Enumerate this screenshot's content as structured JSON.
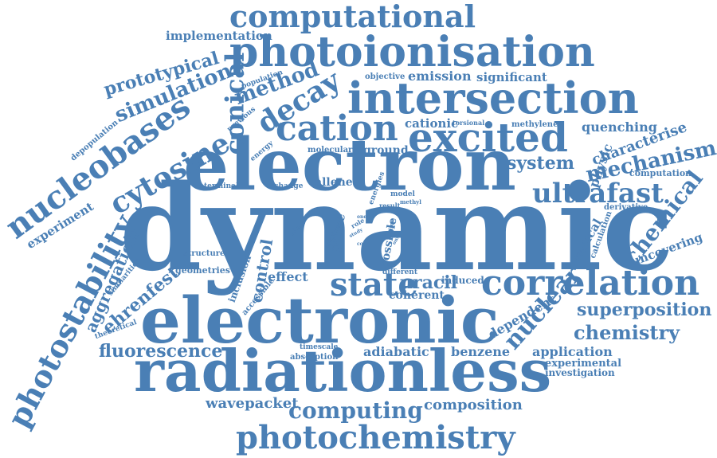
{
  "accent_color": "#4a7fb5",
  "words": [
    "dynamic",
    "electron",
    "electronic",
    "radiationless",
    "intersection",
    "photoionisation",
    "excited",
    "cation",
    "correlation",
    "computational",
    "state",
    "photochemistry",
    "nucleobases",
    "photostability",
    "cytosine",
    "conical",
    "decay",
    "ultrafast",
    "mechanism",
    "chemistry",
    "superposition",
    "computing",
    "chemical",
    "nuclear",
    "method",
    "simulation",
    "prototypical",
    "fluorescence",
    "aggregation",
    "ehrenfest",
    "system",
    "characterise",
    "emission",
    "significant",
    "quenching",
    "cationic",
    "application",
    "uracil",
    "effect",
    "coherent",
    "adiabatic",
    "benzene",
    "wavepacket",
    "composition",
    "implementation",
    "control",
    "pulse",
    "experiment",
    "dependent",
    "experimental",
    "investigation",
    "methylene",
    "radical",
    "ground",
    "physic",
    "uncovering",
    "allene",
    "possible",
    "inclusion",
    "geometries",
    "structure",
    "molecular",
    "objective",
    "computation",
    "derivative",
    "calculation",
    "population",
    "depopulation",
    "previous",
    "energy",
    "terminal",
    "change",
    "accessible",
    "theoretical",
    "similarities",
    "timescale",
    "absorption",
    "different",
    "induced",
    "energies",
    "model",
    "result",
    "methyl",
    "role",
    "minimum",
    "phase",
    "torsional",
    "study",
    "time",
    "onset",
    "one",
    "cope"
  ]
}
